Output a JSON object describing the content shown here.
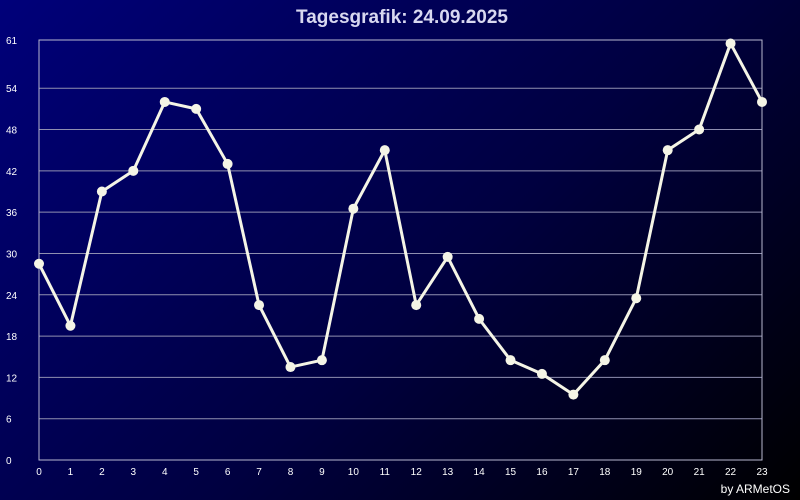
{
  "chart_data": {
    "type": "line",
    "title": "Tagesgrafik: 24.09.2025",
    "xlabel": "",
    "ylabel": "",
    "x": [
      0,
      1,
      2,
      3,
      4,
      5,
      6,
      7,
      8,
      9,
      10,
      11,
      12,
      13,
      14,
      15,
      16,
      17,
      18,
      19,
      20,
      21,
      22,
      23
    ],
    "series": [
      {
        "values": [
          28.5,
          19.5,
          39,
          42,
          52,
          51,
          43,
          22.5,
          13.5,
          14.5,
          36.5,
          45,
          22.5,
          29.5,
          20.5,
          14.5,
          12.5,
          9.5,
          14.5,
          23.5,
          45,
          48,
          60.5,
          52
        ]
      }
    ],
    "xlim": [
      0,
      23
    ],
    "ylim": [
      0,
      61
    ],
    "x_ticks": [
      "0",
      "1",
      "2",
      "3",
      "4",
      "5",
      "6",
      "7",
      "8",
      "9",
      "10",
      "11",
      "12",
      "13",
      "14",
      "15",
      "16",
      "17",
      "18",
      "19",
      "20",
      "21",
      "22",
      "23"
    ],
    "y_ticks": [
      {
        "value": 0,
        "label": "0"
      },
      {
        "value": 6,
        "label": "6"
      },
      {
        "value": 12,
        "label": "12"
      },
      {
        "value": 18,
        "label": "18"
      },
      {
        "value": 24,
        "label": "24"
      },
      {
        "value": 30,
        "label": "30"
      },
      {
        "value": 36,
        "label": "36"
      },
      {
        "value": 42,
        "label": "42"
      },
      {
        "value": 48,
        "label": "48"
      },
      {
        "value": 54,
        "label": "54"
      },
      {
        "value": 61,
        "label": "61"
      }
    ],
    "grid": true,
    "line_color": "#f5f5e6",
    "grid_color": "#8f8fb0",
    "background_color_start": "#00007a",
    "background_color_end": "#000000"
  },
  "credit": "by ARMetOS"
}
